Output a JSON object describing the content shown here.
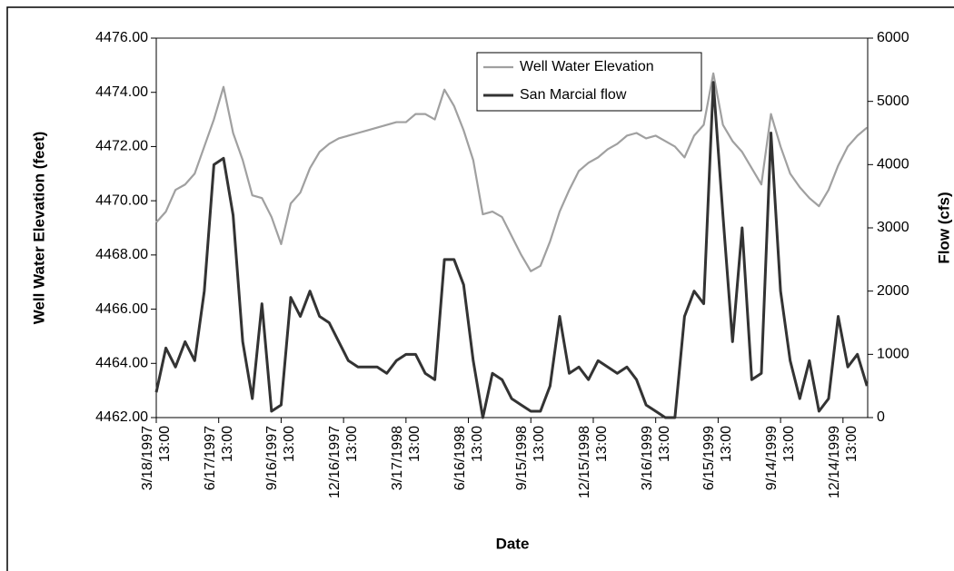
{
  "chart_data": {
    "type": "line",
    "x_label": "Date",
    "y_label": "Well Water Elevation (feet)",
    "y2_label": "Flow (cfs)",
    "x": [
      "1997-03-18",
      "1997-04-01",
      "1997-04-15",
      "1997-04-29",
      "1997-05-13",
      "1997-05-27",
      "1997-06-10",
      "1997-06-24",
      "1997-07-08",
      "1997-07-22",
      "1997-08-05",
      "1997-08-19",
      "1997-09-02",
      "1997-09-16",
      "1997-09-30",
      "1997-10-14",
      "1997-10-28",
      "1997-11-11",
      "1997-11-25",
      "1997-12-09",
      "1997-12-23",
      "1998-01-06",
      "1998-01-20",
      "1998-02-03",
      "1998-02-17",
      "1998-03-03",
      "1998-03-17",
      "1998-03-31",
      "1998-04-14",
      "1998-04-28",
      "1998-05-12",
      "1998-05-26",
      "1998-06-09",
      "1998-06-23",
      "1998-07-07",
      "1998-07-21",
      "1998-08-04",
      "1998-08-18",
      "1998-09-01",
      "1998-09-15",
      "1998-09-29",
      "1998-10-13",
      "1998-10-27",
      "1998-11-10",
      "1998-11-24",
      "1998-12-08",
      "1998-12-22",
      "1999-01-05",
      "1999-01-19",
      "1999-02-02",
      "1999-02-16",
      "1999-03-02",
      "1999-03-16",
      "1999-03-30",
      "1999-04-13",
      "1999-04-27",
      "1999-05-11",
      "1999-05-25",
      "1999-06-08",
      "1999-06-22",
      "1999-07-06",
      "1999-07-20",
      "1999-08-03",
      "1999-08-17",
      "1999-08-31",
      "1999-09-14",
      "1999-09-28",
      "1999-10-12",
      "1999-10-26",
      "1999-11-09",
      "1999-11-23",
      "1999-12-07",
      "1999-12-21",
      "2000-01-04",
      "2000-01-18"
    ],
    "xlim": [
      "1997-03-18",
      "2000-01-19"
    ],
    "xticks": [
      {
        "value": "1997-03-18",
        "label": "3/18/1997 13:00"
      },
      {
        "value": "1997-06-17",
        "label": "6/17/1997 13:00"
      },
      {
        "value": "1997-09-16",
        "label": "9/16/1997 13:00"
      },
      {
        "value": "1997-12-16",
        "label": "12/16/1997 13:00"
      },
      {
        "value": "1998-03-17",
        "label": "3/17/1998 13:00"
      },
      {
        "value": "1998-06-16",
        "label": "6/16/1998 13:00"
      },
      {
        "value": "1998-09-15",
        "label": "9/15/1998 13:00"
      },
      {
        "value": "1998-12-15",
        "label": "12/15/1998 13:00"
      },
      {
        "value": "1999-03-16",
        "label": "3/16/1999 13:00"
      },
      {
        "value": "1999-06-15",
        "label": "6/15/1999 13:00"
      },
      {
        "value": "1999-09-14",
        "label": "9/14/1999 13:00"
      },
      {
        "value": "1999-12-14",
        "label": "12/14/1999 13:00"
      }
    ],
    "ylim": [
      4462,
      4476
    ],
    "yticks": [
      {
        "value": 4462,
        "label": "4462.00"
      },
      {
        "value": 4464,
        "label": "4464.00"
      },
      {
        "value": 4466,
        "label": "4466.00"
      },
      {
        "value": 4468,
        "label": "4468.00"
      },
      {
        "value": 4470,
        "label": "4470.00"
      },
      {
        "value": 4472,
        "label": "4472.00"
      },
      {
        "value": 4474,
        "label": "4474.00"
      },
      {
        "value": 4476,
        "label": "4476.00"
      }
    ],
    "y2lim": [
      0,
      6000
    ],
    "y2ticks": [
      0,
      1000,
      2000,
      3000,
      4000,
      5000,
      6000
    ],
    "legend": "top",
    "series": [
      {
        "name": "Well Water Elevation",
        "color": "#a0a0a0",
        "values": [
          4469.2,
          4469.6,
          4470.4,
          4470.6,
          4471.0,
          4472.0,
          4473.0,
          4474.2,
          4472.5,
          4471.5,
          4470.2,
          4470.1,
          4469.4,
          4468.4,
          4469.9,
          4470.3,
          4471.2,
          4471.8,
          4472.1,
          4472.3,
          4472.4,
          4472.5,
          4472.6,
          4472.7,
          4472.8,
          4472.9,
          4472.9,
          4473.2,
          4473.2,
          4473.0,
          4474.1,
          4473.5,
          4472.6,
          4471.5,
          4469.5,
          4469.6,
          4469.4,
          4468.7,
          4468.0,
          4467.4,
          4467.6,
          4468.5,
          4469.6,
          4470.4,
          4471.1,
          4471.4,
          4471.6,
          4471.9,
          4472.1,
          4472.4,
          4472.5,
          4472.3,
          4472.4,
          4472.2,
          4472.0,
          4471.6,
          4472.4,
          4472.8,
          4474.7,
          4472.8,
          4472.2,
          4471.8,
          4471.2,
          4470.6,
          4473.2,
          4472.0,
          4471.0,
          4470.5,
          4470.1,
          4469.8,
          4470.4,
          4471.3,
          4472.0,
          4472.4,
          4472.7
        ]
      },
      {
        "name": "San Marcial flow",
        "color": "#333333",
        "axis": "y2",
        "values": [
          400,
          1100,
          800,
          1200,
          900,
          2000,
          4000,
          4100,
          3200,
          1200,
          300,
          1800,
          100,
          200,
          1900,
          1600,
          2000,
          1600,
          1500,
          1200,
          900,
          800,
          800,
          800,
          700,
          900,
          1000,
          1000,
          700,
          600,
          2500,
          2500,
          2100,
          900,
          0,
          700,
          600,
          300,
          200,
          100,
          100,
          500,
          1600,
          700,
          800,
          600,
          900,
          800,
          700,
          800,
          600,
          200,
          100,
          0,
          0,
          1600,
          2000,
          1800,
          5300,
          3200,
          1200,
          3000,
          600,
          700,
          4500,
          2000,
          900,
          300,
          900,
          100,
          300,
          1600,
          800,
          1000,
          500
        ]
      }
    ]
  }
}
